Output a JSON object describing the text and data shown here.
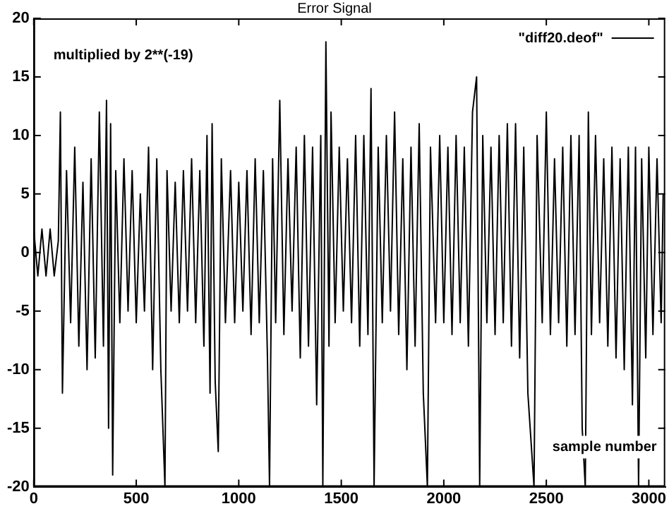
{
  "chart_data": {
    "type": "line",
    "title": "Error Signal",
    "xlabel": "sample number",
    "annotations": [
      "multiplied by 2**(-19)"
    ],
    "x": [
      0,
      20,
      40,
      60,
      80,
      100,
      120,
      130,
      140,
      160,
      180,
      200,
      220,
      240,
      260,
      280,
      300,
      320,
      340,
      355,
      365,
      375,
      385,
      400,
      420,
      440,
      460,
      480,
      500,
      520,
      540,
      560,
      580,
      600,
      620,
      640,
      650,
      670,
      690,
      710,
      730,
      750,
      770,
      790,
      810,
      830,
      845,
      860,
      870,
      885,
      900,
      915,
      935,
      960,
      980,
      1000,
      1020,
      1040,
      1060,
      1080,
      1100,
      1120,
      1140,
      1150,
      1165,
      1180,
      1200,
      1220,
      1240,
      1260,
      1280,
      1300,
      1320,
      1340,
      1360,
      1380,
      1400,
      1410,
      1425,
      1440,
      1450,
      1470,
      1490,
      1510,
      1530,
      1550,
      1570,
      1590,
      1610,
      1630,
      1645,
      1660,
      1680,
      1700,
      1720,
      1740,
      1760,
      1780,
      1800,
      1820,
      1840,
      1860,
      1880,
      1900,
      1920,
      1935,
      1960,
      1980,
      2000,
      2020,
      2040,
      2060,
      2080,
      2100,
      2120,
      2140,
      2160,
      2175,
      2190,
      2210,
      2230,
      2250,
      2270,
      2290,
      2310,
      2330,
      2350,
      2370,
      2390,
      2410,
      2440,
      2455,
      2480,
      2500,
      2520,
      2540,
      2560,
      2580,
      2600,
      2620,
      2640,
      2660,
      2675,
      2690,
      2705,
      2720,
      2740,
      2760,
      2780,
      2800,
      2820,
      2840,
      2860,
      2880,
      2900,
      2920,
      2935,
      2950,
      2965,
      2985,
      3000,
      3020,
      3040,
      3060,
      3070
    ],
    "series": [
      {
        "name": "\"diff20.deof\"",
        "color": "#000000",
        "values": [
          2,
          -2,
          2,
          -2,
          2,
          -2,
          1,
          12,
          -12,
          7,
          -6,
          9,
          -8,
          6,
          -10,
          8,
          -9,
          12,
          -8,
          13,
          -15,
          11,
          -19,
          7,
          -6,
          8,
          -5,
          7,
          -6,
          5,
          -5,
          9,
          -10,
          8,
          -10,
          -20,
          7,
          -5,
          6,
          -6,
          7,
          -5,
          8,
          -6,
          7,
          -8,
          10,
          -12,
          11,
          -11,
          -17,
          8,
          -6,
          7,
          -6,
          6,
          -5,
          7,
          -7,
          8,
          -6,
          7,
          -9,
          -20,
          8,
          -6,
          13,
          -7,
          8,
          -5,
          9,
          -9,
          10,
          -8,
          9,
          -13,
          10,
          -20,
          18,
          -8,
          12,
          -6,
          9,
          -5,
          8,
          -6,
          10,
          -8,
          10,
          -7,
          14,
          -20,
          9,
          -6,
          10,
          -5,
          12,
          -7,
          8,
          -10,
          9,
          -8,
          11,
          -12,
          -20,
          9,
          -6,
          10,
          -6,
          9,
          -7,
          10,
          -6,
          9,
          -8,
          12,
          15,
          -20,
          10,
          -6,
          9,
          -7,
          10,
          -6,
          11,
          -8,
          11,
          -9,
          9,
          -12,
          -20,
          10,
          -6,
          12,
          -7,
          8,
          -6,
          9,
          -8,
          10,
          -7,
          10,
          -15,
          -20,
          12,
          -7,
          10,
          -6,
          8,
          -8,
          9,
          -9,
          8,
          -10,
          9,
          -13,
          9,
          -20,
          8,
          -9,
          9,
          -7,
          8,
          -6,
          5
        ]
      }
    ],
    "xlim": [
      0,
      3080
    ],
    "ylim": [
      -20,
      20
    ],
    "xticks": [
      0,
      500,
      1000,
      1500,
      2000,
      2500,
      3000
    ],
    "yticks": [
      -20,
      -15,
      -10,
      -5,
      0,
      5,
      10,
      15,
      20
    ],
    "grid": false,
    "legend": "top right",
    "marker": "none",
    "line_style": "solid"
  }
}
